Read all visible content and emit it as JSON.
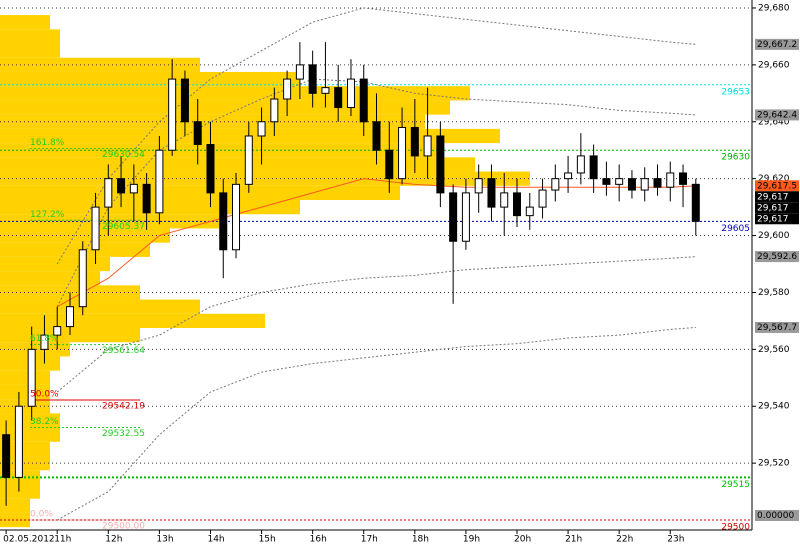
{
  "chart_data": {
    "type": "candlestick",
    "xlim": [
      9.88,
      24.6
    ],
    "ylim": [
      29496.5,
      29682.8
    ],
    "xticks": [
      {
        "value": 10,
        "label": "02.05.2012"
      },
      {
        "value": 11,
        "label": "11h"
      },
      {
        "value": 12,
        "label": "12h"
      },
      {
        "value": 13,
        "label": "13h"
      },
      {
        "value": 14,
        "label": "14h"
      },
      {
        "value": 15,
        "label": "15h"
      },
      {
        "value": 16,
        "label": "16h"
      },
      {
        "value": 17,
        "label": "17h"
      },
      {
        "value": 18,
        "label": "18h"
      },
      {
        "value": 19,
        "label": "19h"
      },
      {
        "value": 20,
        "label": "20h"
      },
      {
        "value": 21,
        "label": "21h"
      },
      {
        "value": 22,
        "label": "22h"
      },
      {
        "value": 23,
        "label": "23h"
      }
    ],
    "yticks": [
      {
        "value": 29520,
        "label": "29,520"
      },
      {
        "value": 29540,
        "label": "29,540"
      },
      {
        "value": 29560,
        "label": "29,560"
      },
      {
        "value": 29580,
        "label": "29,580"
      },
      {
        "value": 29600,
        "label": "29,600"
      },
      {
        "value": 29620,
        "label": "29,620"
      },
      {
        "value": 29640,
        "label": "29,640"
      },
      {
        "value": 29660,
        "label": "29,660"
      },
      {
        "value": 29680,
        "label": "29,680"
      }
    ],
    "grid": true,
    "x": [
      10.0,
      10.25,
      10.5,
      10.75,
      11.0,
      11.25,
      11.5,
      11.75,
      12.0,
      12.25,
      12.5,
      12.75,
      13.0,
      13.25,
      13.5,
      13.75,
      14.0,
      14.25,
      14.5,
      14.75,
      15.0,
      15.25,
      15.5,
      15.75,
      16.0,
      16.25,
      16.5,
      16.75,
      17.0,
      17.25,
      17.5,
      17.75,
      18.0,
      18.25,
      18.5,
      18.75,
      19.0,
      19.25,
      19.5,
      19.75,
      20.0,
      20.25,
      20.5,
      20.75,
      21.0,
      21.25,
      21.5,
      21.75,
      22.0,
      22.25,
      22.5,
      22.75,
      23.0,
      23.25,
      23.5
    ],
    "open": [
      29530,
      29515,
      29540,
      29560,
      29565,
      29568,
      29575,
      29595,
      29610,
      29620,
      29615,
      29618,
      29608,
      29630,
      29655,
      29640,
      29632,
      29615,
      29595,
      29618,
      29635,
      29640,
      29648,
      29655,
      29660,
      29650,
      29652,
      29645,
      29655,
      29640,
      29630,
      29620,
      29638,
      29628,
      29635,
      29615,
      29598,
      29615,
      29620,
      29610,
      29615,
      29607,
      29610,
      29616,
      29620,
      29622,
      29628,
      29620,
      29618,
      29620,
      29616,
      29620,
      29617,
      29622,
      29618
    ],
    "high": [
      29535,
      29545,
      29568,
      29572,
      29575,
      29580,
      29598,
      29615,
      29625,
      29628,
      29625,
      29622,
      29635,
      29662,
      29658,
      29648,
      29640,
      29620,
      29622,
      29640,
      29645,
      29652,
      29658,
      29668,
      29665,
      29668,
      29660,
      29662,
      29660,
      29650,
      29640,
      29645,
      29648,
      29652,
      29640,
      29618,
      29620,
      29625,
      29625,
      29622,
      29620,
      29615,
      29620,
      29625,
      29628,
      29636,
      29632,
      29626,
      29625,
      29623,
      29624,
      29625,
      29626,
      29625,
      29620
    ],
    "low": [
      29505,
      29510,
      29535,
      29555,
      29560,
      29565,
      29572,
      29590,
      29600,
      29610,
      29605,
      29602,
      29604,
      29628,
      29635,
      29625,
      29610,
      29585,
      29592,
      29615,
      29625,
      29635,
      29642,
      29648,
      29645,
      29645,
      29640,
      29642,
      29635,
      29625,
      29615,
      29618,
      29622,
      29620,
      29610,
      29576,
      29595,
      29608,
      29605,
      29600,
      29603,
      29602,
      29606,
      29612,
      29615,
      29618,
      29615,
      29614,
      29612,
      29613,
      29612,
      29614,
      29612,
      29610,
      29600
    ],
    "close": [
      29515,
      29540,
      29560,
      29565,
      29568,
      29575,
      29595,
      29610,
      29620,
      29615,
      29618,
      29608,
      29630,
      29655,
      29640,
      29632,
      29615,
      29595,
      29618,
      29635,
      29640,
      29648,
      29655,
      29660,
      29650,
      29652,
      29645,
      29655,
      29640,
      29630,
      29620,
      29638,
      29628,
      29635,
      29615,
      29598,
      29615,
      29620,
      29610,
      29615,
      29607,
      29610,
      29616,
      29620,
      29622,
      29628,
      29620,
      29618,
      29620,
      29616,
      29620,
      29617,
      29622,
      29618,
      29605
    ],
    "profile": {
      "color": "#ffd200",
      "step": 5,
      "levels": [
        29500,
        29505,
        29510,
        29515,
        29520,
        29525,
        29530,
        29535,
        29540,
        29545,
        29550,
        29555,
        29560,
        29565,
        29570,
        29575,
        29580,
        29585,
        29590,
        29595,
        29600,
        29605,
        29610,
        29615,
        29620,
        29625,
        29630,
        29635,
        29640,
        29645,
        29650,
        29655,
        29660,
        29665,
        29670,
        29675
      ],
      "volumes": [
        6,
        6,
        8,
        8,
        10,
        10,
        12,
        12,
        10,
        10,
        10,
        12,
        14,
        28,
        53,
        40,
        28,
        20,
        22,
        30,
        34,
        44,
        60,
        80,
        106,
        95,
        88,
        100,
        85,
        90,
        94,
        60,
        40,
        12,
        12,
        10
      ]
    },
    "band_x": [
      11,
      12,
      13,
      14,
      15,
      16,
      17,
      18,
      19,
      20,
      21,
      22,
      23,
      23.5
    ],
    "bands": [
      {
        "color": "#777777",
        "values": [
          29590,
          29620,
          29640,
          29655,
          29665,
          29675,
          29680,
          29678,
          29676,
          29674,
          29672,
          29670,
          29668,
          29667.2
        ]
      },
      {
        "color": "#777777",
        "values": [
          29575,
          29610,
          29630,
          29640,
          29648,
          29655,
          29654,
          29650,
          29648,
          29647,
          29646,
          29644,
          29643,
          29642.4
        ]
      },
      {
        "color": "#ff5a1e",
        "values": [
          29575,
          29585,
          29600,
          29605,
          29610,
          29615,
          29620,
          29618,
          29617,
          29617,
          29617,
          29617,
          29617,
          29617.5
        ]
      },
      {
        "color": "#777777",
        "values": [
          29545,
          29560,
          29565,
          29575,
          29580,
          29583,
          29585,
          29586,
          29588,
          29589,
          29590,
          29591,
          29592,
          29592.6
        ]
      },
      {
        "color": "#777777",
        "values": [
          29500,
          29510,
          29530,
          29545,
          29552,
          29555,
          29557,
          29559,
          29561,
          29562,
          29564,
          29565,
          29567,
          29567.7
        ]
      }
    ],
    "levels": [
      {
        "value": 29653,
        "color": "#00e0e0"
      },
      {
        "value": 29630,
        "color": "#00b000"
      },
      {
        "value": 29605,
        "color": "#0000c0"
      },
      {
        "value": 29515,
        "color": "#00c000"
      },
      {
        "value": 29500,
        "color": "#d00000"
      }
    ],
    "fib": [
      {
        "level": {
          "value": 161.8,
          "label": "161.8%"
        },
        "price": 29630.54,
        "color": "#22cc22"
      },
      {
        "level": {
          "value": 127.2,
          "label": "127.2%"
        },
        "price": 29605.37,
        "color": "#22cc22"
      },
      {
        "level": {
          "value": 61.8,
          "label": "61.8%"
        },
        "price": 29561.64,
        "color": "#22cc22"
      },
      {
        "level": {
          "value": 50.0,
          "label": "50.0%"
        },
        "price": 29542.19,
        "color": "#dd0000"
      },
      {
        "level": {
          "value": 38.2,
          "label": "38.2%"
        },
        "price": 29532.55,
        "color": "#22cc22"
      },
      {
        "level": {
          "value": 0.0,
          "label": "0.0%"
        },
        "price": {
          "value": 29500.0,
          "label": "29500.00"
        },
        "color": "#f4b0b0"
      }
    ],
    "price_boxes": [
      {
        "value": 29667.2,
        "label": "29,667.2",
        "bg": "#9a9a9a",
        "fg": "#000000"
      },
      {
        "value": 29642.4,
        "label": "29,642.4",
        "bg": "#9a9a9a",
        "fg": "#000000"
      },
      {
        "value": 29617.5,
        "label": "29,617.5",
        "bg": "#ff5a1e",
        "fg": "#000000"
      },
      {
        "value": 29617,
        "label": "29,617",
        "bg": "#000000",
        "fg": "#ffffff"
      },
      {
        "value": 29617,
        "label": "29,617",
        "bg": "#000000",
        "fg": "#ffffff"
      },
      {
        "value": 29617,
        "label": "29,617",
        "bg": "#000000",
        "fg": "#ffffff"
      },
      {
        "value": 29592.6,
        "label": "29,592.6",
        "bg": "#9a9a9a",
        "fg": "#000000"
      },
      {
        "value": 29567.7,
        "label": "29,567.7",
        "bg": "#9a9a9a",
        "fg": "#000000"
      }
    ],
    "indicator_box": {
      "label": "0.00000"
    }
  }
}
